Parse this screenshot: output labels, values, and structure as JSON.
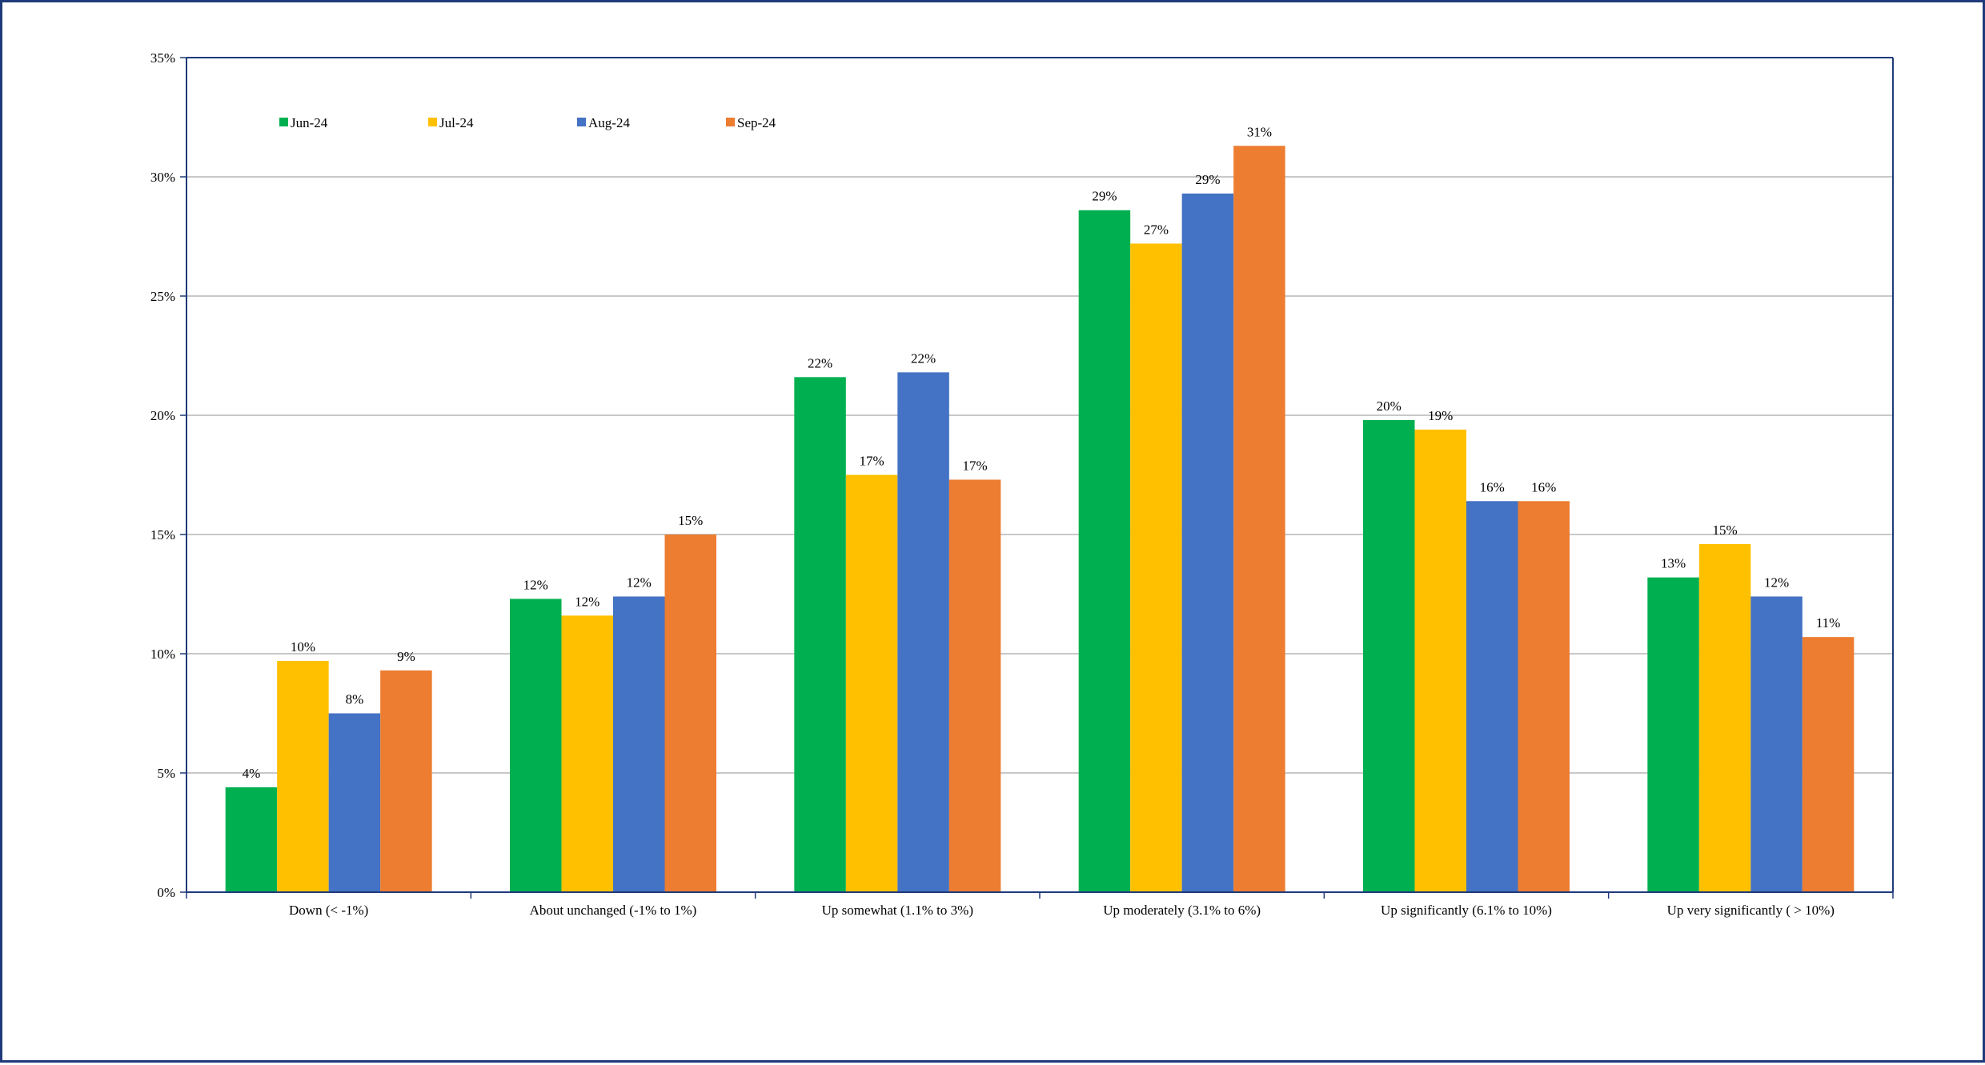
{
  "chart_data": {
    "type": "bar",
    "title": "",
    "xlabel": "",
    "ylabel": "",
    "ylim": [
      0,
      35
    ],
    "y_ticks": [
      "0%",
      "5%",
      "10%",
      "15%",
      "20%",
      "25%",
      "30%",
      "35%"
    ],
    "y_tick_values": [
      0,
      5,
      10,
      15,
      20,
      25,
      30,
      35
    ],
    "grid": true,
    "legend_position": "top-left",
    "categories": [
      "Down (< -1%)",
      "About unchanged (-1% to 1%)",
      "Up somewhat (1.1% to 3%)",
      "Up moderately (3.1% to 6%)",
      "Up significantly (6.1% to 10%)",
      "Up very significantly ( > 10%)"
    ],
    "series": [
      {
        "name": "Jun-24",
        "color": "#00b050",
        "values": [
          4.4,
          12.3,
          21.6,
          28.6,
          19.8,
          13.2
        ],
        "labels": [
          "4%",
          "12%",
          "22%",
          "29%",
          "20%",
          "13%"
        ]
      },
      {
        "name": "Jul-24",
        "color": "#ffc000",
        "values": [
          9.7,
          11.6,
          17.5,
          27.2,
          19.4,
          14.6
        ],
        "labels": [
          "10%",
          "12%",
          "17%",
          "27%",
          "19%",
          "15%"
        ]
      },
      {
        "name": "Aug-24",
        "color": "#4472c4",
        "values": [
          7.5,
          12.4,
          21.8,
          29.3,
          16.4,
          12.4
        ],
        "labels": [
          "8%",
          "12%",
          "22%",
          "29%",
          "16%",
          "12%"
        ]
      },
      {
        "name": "Sep-24",
        "color": "#ed7d31",
        "values": [
          9.3,
          15.0,
          17.3,
          31.3,
          16.4,
          10.7
        ],
        "labels": [
          "9%",
          "15%",
          "17%",
          "31%",
          "16%",
          "11%"
        ]
      }
    ]
  }
}
